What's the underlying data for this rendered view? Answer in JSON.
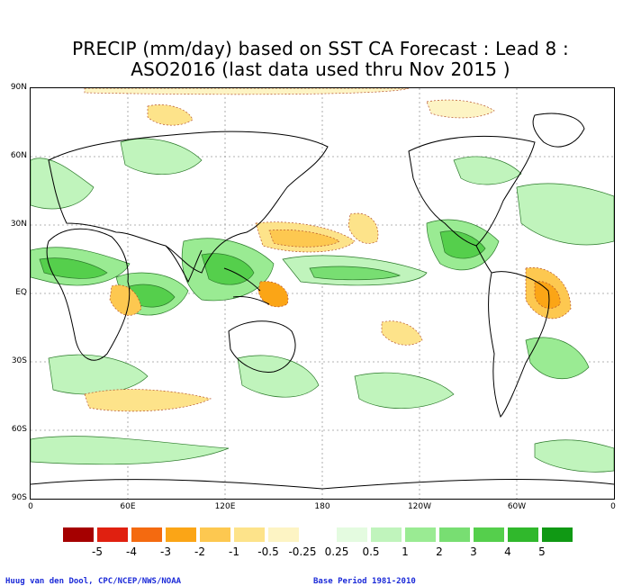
{
  "title": {
    "line1": "PRECIP (mm/day) based on SST CA Forecast : Lead 8 :",
    "line2": "ASO2016 (last data used thru Nov 2015 )"
  },
  "axes": {
    "y_labels": [
      "90N",
      "60N",
      "30N",
      "EQ",
      "30S",
      "60S",
      "90S"
    ],
    "x_labels": [
      "0",
      "60E",
      "120E",
      "180",
      "120W",
      "60W",
      "0"
    ]
  },
  "legend": {
    "colors": [
      "#a50000",
      "#e02010",
      "#f46a10",
      "#fba516",
      "#fdc850",
      "#fde38a",
      "#fdf4c4",
      "#ffffff",
      "#e4fbe0",
      "#c0f4bc",
      "#9aeb93",
      "#78de72",
      "#55cf4c",
      "#30b82c",
      "#109914"
    ],
    "labels": [
      "-5",
      "-4",
      "-3",
      "-2",
      "-1",
      "-0.5",
      "-0.25",
      "0.25",
      "0.5",
      "1",
      "2",
      "3",
      "4",
      "5"
    ]
  },
  "footer": {
    "left": "Huug van den Dool, CPC/NCEP/NWS/NOAA",
    "right": "Base Period 1981-2010"
  }
}
